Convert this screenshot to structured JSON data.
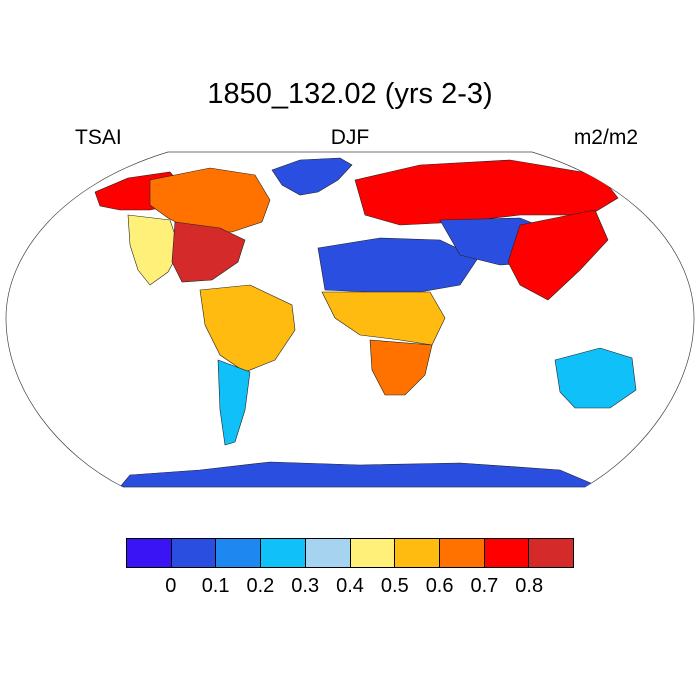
{
  "title": "1850_132.02 (yrs 2-3)",
  "subtitle_left": "TSAI",
  "subtitle_center": "DJF",
  "subtitle_right": "m2/m2",
  "colorbar": {
    "colors": [
      "#3a14f4",
      "#2a4fe0",
      "#1f88f0",
      "#10c0f8",
      "#a6d4f0",
      "#fff07a",
      "#ffbb10",
      "#ff7200",
      "#ff0000",
      "#d42a2a"
    ],
    "labels": [
      "0",
      "0.1",
      "0.2",
      "0.3",
      "0.4",
      "0.5",
      "0.6",
      "0.7",
      "0.8"
    ]
  },
  "map": {
    "projection": "robinson",
    "field": "TSAI",
    "season": "DJF",
    "units": "m2/m2",
    "ocean_color": "#ffffff",
    "regions": [
      {
        "name": "canada-boreal",
        "value_level": 7
      },
      {
        "name": "alaska",
        "value_level": 8
      },
      {
        "name": "eastern-usa",
        "value_level": 9
      },
      {
        "name": "western-usa",
        "value_level": 5
      },
      {
        "name": "greenland",
        "value_level": 1
      },
      {
        "name": "amazon",
        "value_level": 6
      },
      {
        "name": "patagonia",
        "value_level": 3
      },
      {
        "name": "europe-russia",
        "value_level": 8
      },
      {
        "name": "sahara-arabia",
        "value_level": 1
      },
      {
        "name": "central-asia",
        "value_level": 1
      },
      {
        "name": "tropical-africa",
        "value_level": 6
      },
      {
        "name": "southern-africa",
        "value_level": 7
      },
      {
        "name": "east-asia",
        "value_level": 8
      },
      {
        "name": "australia-interior",
        "value_level": 3
      },
      {
        "name": "antarctica",
        "value_level": 1
      }
    ]
  }
}
